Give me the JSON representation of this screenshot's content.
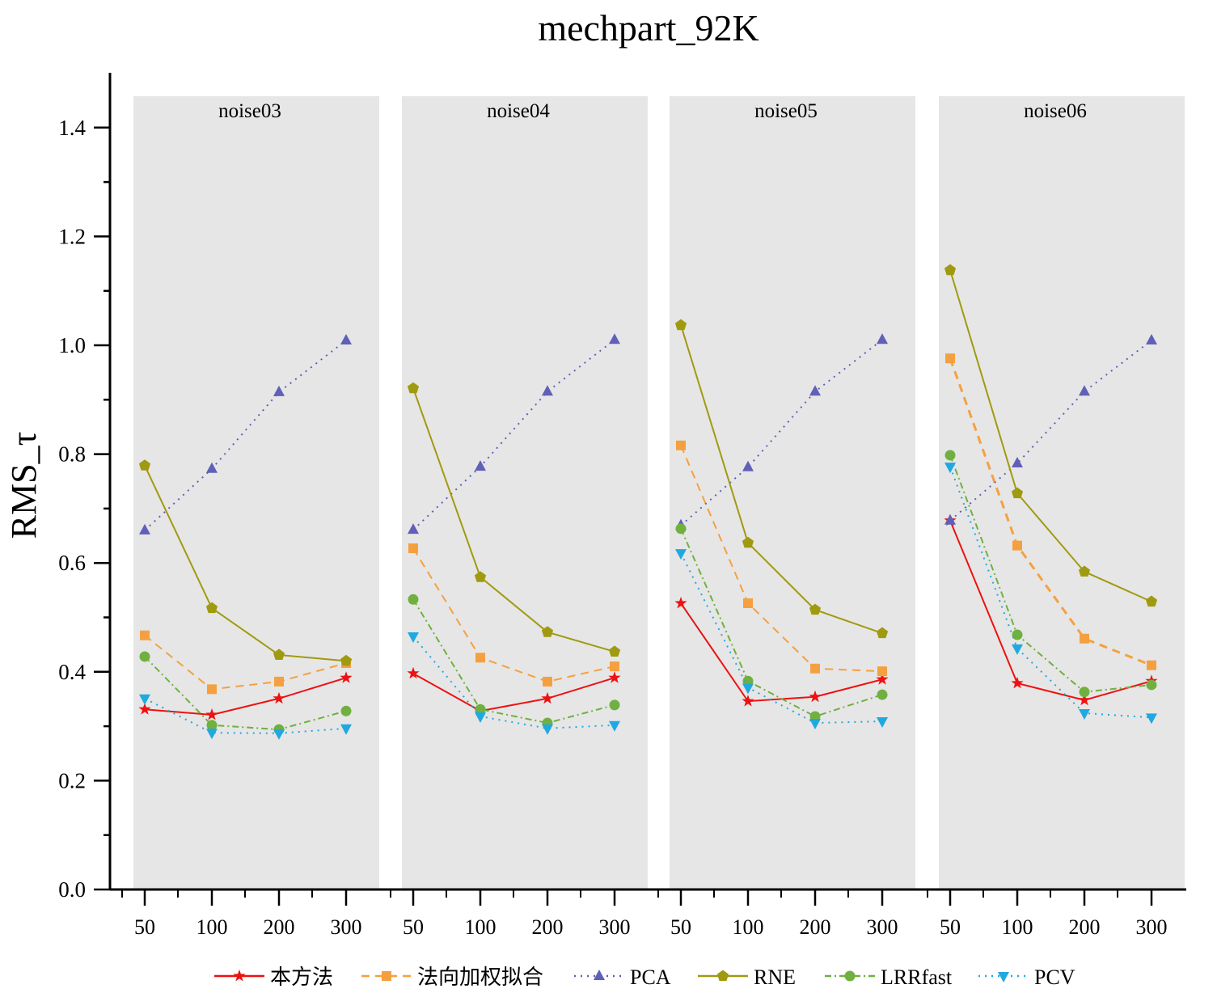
{
  "chart_data": {
    "type": "line",
    "title": "mechpart_92K",
    "ylabel": "RMS_τ",
    "xlabel": "",
    "ylim": [
      0,
      1.5
    ],
    "yticks": [
      "0.0",
      "0.2",
      "0.4",
      "0.6",
      "0.8",
      "1.0",
      "1.2",
      "1.4"
    ],
    "ytick_values": [
      0,
      0.2,
      0.4,
      0.6,
      0.8,
      1.0,
      1.2,
      1.4
    ],
    "categories": [
      "50",
      "100",
      "200",
      "300"
    ],
    "grid": false,
    "legend_position": "bottom",
    "panels": [
      {
        "name": "noise03",
        "series": [
          {
            "name": "本方法",
            "values": [
              0.331,
              0.321,
              0.351,
              0.389
            ]
          },
          {
            "name": "法向加权拟合",
            "values": [
              0.467,
              0.368,
              0.382,
              0.416
            ]
          },
          {
            "name": "PCA",
            "values": [
              0.66,
              0.773,
              0.914,
              1.009
            ]
          },
          {
            "name": "RNE",
            "values": [
              0.779,
              0.517,
              0.431,
              0.42
            ]
          },
          {
            "name": "LRRfast",
            "values": [
              0.428,
              0.302,
              0.294,
              0.328
            ]
          },
          {
            "name": "PCV",
            "values": [
              0.351,
              0.288,
              0.287,
              0.296
            ]
          }
        ]
      },
      {
        "name": "noise04",
        "series": [
          {
            "name": "本方法",
            "values": [
              0.397,
              0.328,
              0.351,
              0.389
            ]
          },
          {
            "name": "法向加权拟合",
            "values": [
              0.627,
              0.426,
              0.382,
              0.41
            ]
          },
          {
            "name": "PCA",
            "values": [
              0.661,
              0.777,
              0.915,
              1.01
            ]
          },
          {
            "name": "RNE",
            "values": [
              0.921,
              0.574,
              0.473,
              0.437
            ]
          },
          {
            "name": "LRRfast",
            "values": [
              0.533,
              0.331,
              0.306,
              0.339
            ]
          },
          {
            "name": "PCV",
            "values": [
              0.465,
              0.318,
              0.296,
              0.302
            ]
          }
        ]
      },
      {
        "name": "noise05",
        "series": [
          {
            "name": "本方法",
            "values": [
              0.526,
              0.346,
              0.354,
              0.386
            ]
          },
          {
            "name": "法向加权拟合",
            "values": [
              0.816,
              0.526,
              0.406,
              0.401
            ]
          },
          {
            "name": "PCA",
            "values": [
              0.669,
              0.776,
              0.915,
              1.01
            ]
          },
          {
            "name": "RNE",
            "values": [
              1.037,
              0.637,
              0.514,
              0.471
            ]
          },
          {
            "name": "LRRfast",
            "values": [
              0.663,
              0.383,
              0.318,
              0.358
            ]
          },
          {
            "name": "PCV",
            "values": [
              0.618,
              0.371,
              0.306,
              0.309
            ]
          }
        ]
      },
      {
        "name": "noise06",
        "series": [
          {
            "name": "本方法",
            "values": [
              0.678,
              0.379,
              0.348,
              0.383
            ]
          },
          {
            "name": "法向加权拟合",
            "values": [
              0.976,
              0.632,
              0.461,
              0.412
            ]
          },
          {
            "name": "PCA",
            "values": [
              0.678,
              0.783,
              0.915,
              1.009
            ]
          },
          {
            "name": "RNE",
            "values": [
              1.138,
              0.728,
              0.584,
              0.529
            ]
          },
          {
            "name": "LRRfast",
            "values": [
              0.798,
              0.468,
              0.363,
              0.376
            ]
          },
          {
            "name": "PCV",
            "values": [
              0.777,
              0.443,
              0.324,
              0.316
            ]
          }
        ]
      }
    ],
    "legend": [
      {
        "name": "本方法",
        "color": "#ee1111",
        "marker": "star",
        "dash": "solid"
      },
      {
        "name": "法向加权拟合",
        "color": "#f5a040",
        "marker": "square",
        "dash": "dash"
      },
      {
        "name": "PCA",
        "color": "#6060b8",
        "marker": "triangle-up",
        "dash": "dot"
      },
      {
        "name": "RNE",
        "color": "#a09a10",
        "marker": "pentagon",
        "dash": "solid"
      },
      {
        "name": "LRRfast",
        "color": "#70b040",
        "marker": "circle",
        "dash": "dashdot"
      },
      {
        "name": "PCV",
        "color": "#20a8e0",
        "marker": "triangle-down",
        "dash": "dot"
      }
    ]
  }
}
